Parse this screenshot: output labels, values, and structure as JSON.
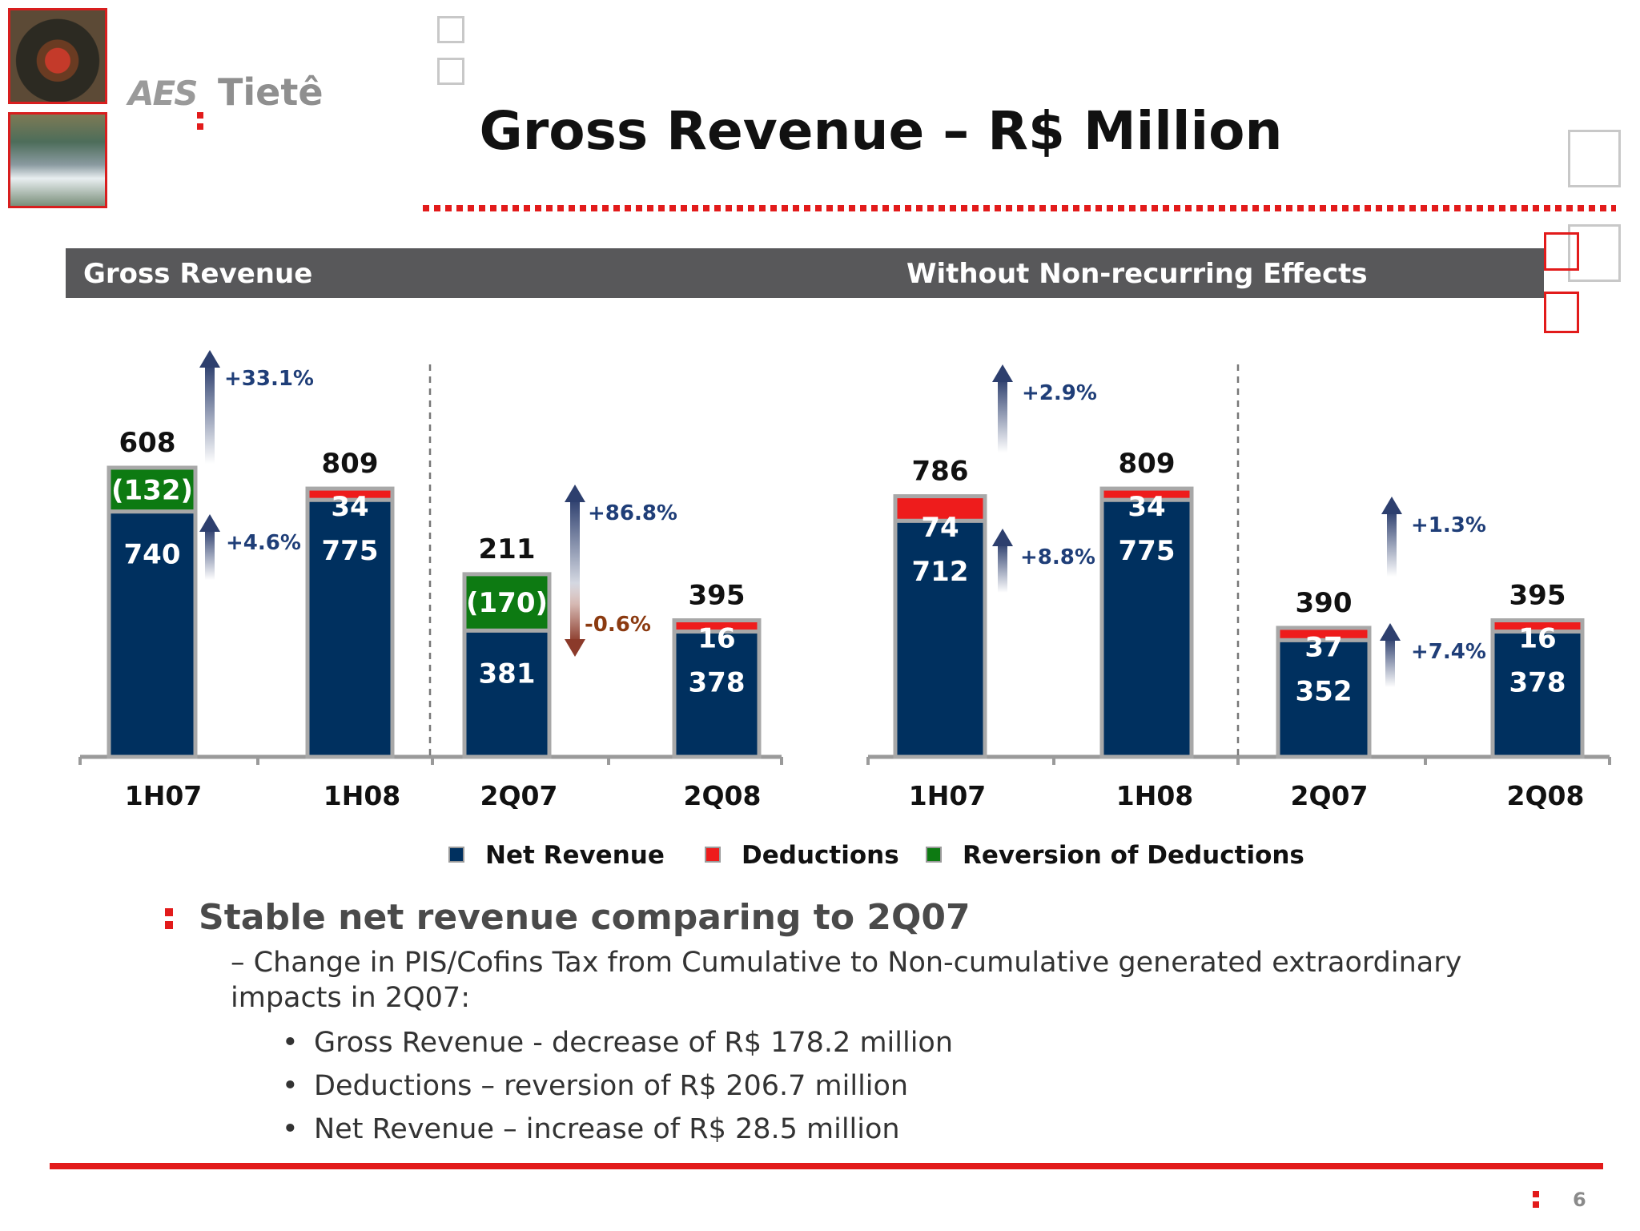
{
  "logo": {
    "brand": "AES",
    "name": "Tietê"
  },
  "title": "Gross Revenue – R$ Million",
  "header_bar": {
    "left": "Gross Revenue",
    "right": "Without Non-recurring Effects"
  },
  "colors": {
    "net_revenue": "#00305f",
    "deductions": "#ee1c1c",
    "reversion": "#0d7a12",
    "accent": "#e21b1b"
  },
  "chart_data": [
    {
      "type": "bar",
      "stacked": true,
      "title": "Gross Revenue",
      "categories": [
        "1H07",
        "1H08",
        "2Q07",
        "2Q08"
      ],
      "series": [
        {
          "name": "Net Revenue",
          "values": [
            740,
            775,
            381,
            378
          ]
        },
        {
          "name": "Deductions",
          "values": [
            null,
            34,
            null,
            16
          ]
        },
        {
          "name": "Reversion of Deductions",
          "values": [
            -132,
            null,
            -170,
            null
          ]
        }
      ],
      "totals": [
        608,
        809,
        211,
        395
      ],
      "labels": {
        "net": [
          "740",
          "775",
          "381",
          "378"
        ],
        "top": [
          "(132)",
          "34",
          "(170)",
          "16"
        ],
        "total": [
          "608",
          "809",
          "211",
          "395"
        ]
      },
      "annotations": [
        {
          "text": "+33.1%",
          "between": [
            "1H07",
            "1H08"
          ],
          "target": "total",
          "direction": "up"
        },
        {
          "text": "+4.6%",
          "between": [
            "1H07",
            "1H08"
          ],
          "target": "net",
          "direction": "up"
        },
        {
          "text": "+86.8%",
          "between": [
            "2Q07",
            "2Q08"
          ],
          "target": "total",
          "direction": "up"
        },
        {
          "text": "-0.6%",
          "between": [
            "2Q07",
            "2Q08"
          ],
          "target": "net",
          "direction": "down"
        }
      ]
    },
    {
      "type": "bar",
      "stacked": true,
      "title": "Without Non-recurring Effects",
      "categories": [
        "1H07",
        "1H08",
        "2Q07",
        "2Q08"
      ],
      "series": [
        {
          "name": "Net Revenue",
          "values": [
            712,
            775,
            352,
            378
          ]
        },
        {
          "name": "Deductions",
          "values": [
            74,
            34,
            37,
            16
          ]
        }
      ],
      "totals": [
        786,
        809,
        390,
        395
      ],
      "labels": {
        "net": [
          "712",
          "775",
          "352",
          "378"
        ],
        "top": [
          "74",
          "34",
          "37",
          "16"
        ],
        "total": [
          "786",
          "809",
          "390",
          "395"
        ]
      },
      "annotations": [
        {
          "text": "+2.9%",
          "between": [
            "1H07",
            "1H08"
          ],
          "target": "total",
          "direction": "up"
        },
        {
          "text": "+8.8%",
          "between": [
            "1H07",
            "1H08"
          ],
          "target": "net",
          "direction": "up"
        },
        {
          "text": "+1.3%",
          "between": [
            "2Q07",
            "2Q08"
          ],
          "target": "total",
          "direction": "up"
        },
        {
          "text": "+7.4%",
          "between": [
            "2Q07",
            "2Q08"
          ],
          "target": "net",
          "direction": "up"
        }
      ]
    }
  ],
  "legend": [
    "Net Revenue",
    "Deductions",
    "Reversion of Deductions"
  ],
  "bullets": {
    "main": "Stable net revenue comparing to 2Q07",
    "sub": "– Change in PIS/Cofins Tax from Cumulative to Non-cumulative generated extraordinary impacts in 2Q07:",
    "items": [
      "Gross Revenue -  decrease of R$ 178.2 million",
      "Deductions – reversion of R$ 206.7 million",
      "Net Revenue – increase of R$ 28.5 million"
    ]
  },
  "page_number": "6"
}
